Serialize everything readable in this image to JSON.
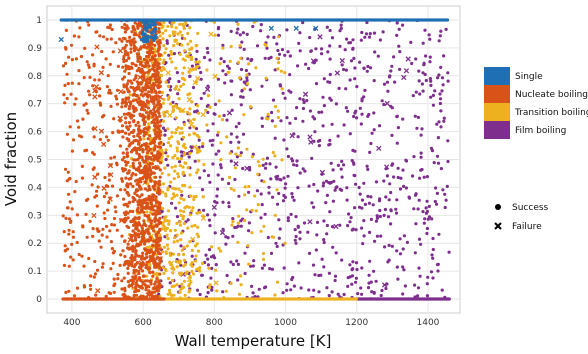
{
  "chart_data": {
    "type": "scatter",
    "title": "",
    "xlabel": "Wall temperature [K]",
    "ylabel": "Void fraction",
    "xlim": [
      330,
      1490
    ],
    "ylim": [
      -0.05,
      1.05
    ],
    "xticks": [
      400,
      600,
      800,
      1000,
      1200,
      1400
    ],
    "yticks": [
      0,
      0.1,
      0.2,
      0.3,
      0.4,
      0.5,
      0.6,
      0.7,
      0.8,
      0.9,
      1
    ],
    "grid": true,
    "legend_position": "right",
    "marker_legend": [
      {
        "name": "Success",
        "marker": "circle"
      },
      {
        "name": "Failure",
        "marker": "x"
      }
    ],
    "series": [
      {
        "name": "Single",
        "color": "#1f6fb4",
        "description_points": [
          {
            "x": 375,
            "y": 1.0
          },
          {
            "x": 450,
            "y": 1.0
          },
          {
            "x": 520,
            "y": 1.0
          },
          {
            "x": 580,
            "y": 1.0
          },
          {
            "x": 600,
            "y": 0.99
          },
          {
            "x": 610,
            "y": 0.97
          },
          {
            "x": 615,
            "y": 0.95
          },
          {
            "x": 620,
            "y": 0.98
          },
          {
            "x": 625,
            "y": 0.93
          },
          {
            "x": 630,
            "y": 0.96
          },
          {
            "x": 700,
            "y": 1.0
          },
          {
            "x": 800,
            "y": 1.0
          },
          {
            "x": 900,
            "y": 1.0
          },
          {
            "x": 1000,
            "y": 1.0
          },
          {
            "x": 1100,
            "y": 1.0
          },
          {
            "x": 1200,
            "y": 1.0
          },
          {
            "x": 1300,
            "y": 1.0
          },
          {
            "x": 1400,
            "y": 1.0
          },
          {
            "x": 1450,
            "y": 1.0
          }
        ],
        "failures": [
          {
            "x": 370,
            "y": 0.93
          },
          {
            "x": 960,
            "y": 0.97
          },
          {
            "x": 1030,
            "y": 0.97
          },
          {
            "x": 1085,
            "y": 0.97
          }
        ]
      },
      {
        "name": "Nucleate boiling",
        "color": "#d95319",
        "x_range": [
          375,
          650
        ],
        "x_dense_range": [
          540,
          650
        ],
        "y_range": [
          0,
          1.0
        ]
      },
      {
        "name": "Transition boiling",
        "color": "#edb120",
        "x_range": [
          560,
          1000
        ],
        "x_dense_range": [
          610,
          760
        ],
        "y_range": [
          0,
          1.0
        ]
      },
      {
        "name": "Film boiling",
        "color": "#7e2f8e",
        "x_range": [
          640,
          1460
        ],
        "y_range": [
          0,
          1.0
        ]
      }
    ]
  }
}
